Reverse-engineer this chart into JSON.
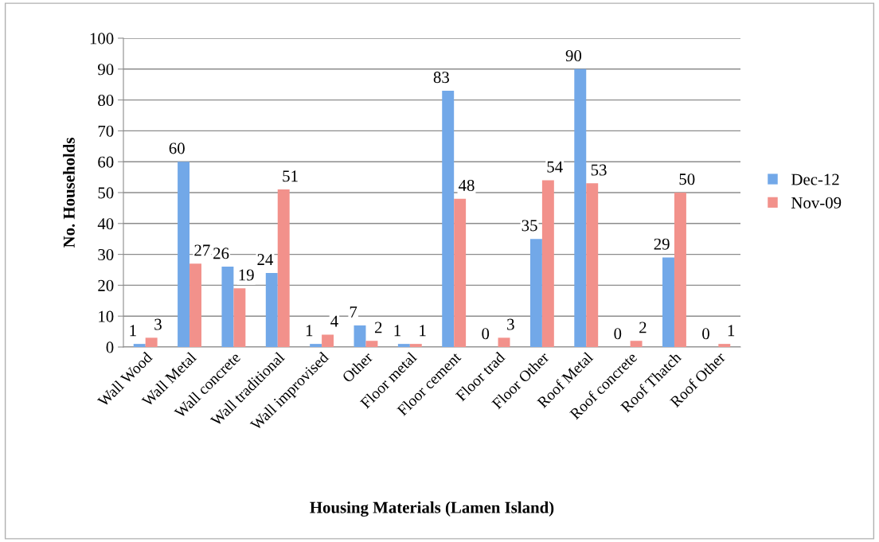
{
  "chart_data": {
    "type": "bar",
    "xlabel": "Housing Materials (Lamen Island)",
    "ylabel": "No. Households",
    "categories": [
      "Wall Wood",
      "Wall Metal",
      "Wall concrete",
      "Wall traditional",
      "Wall improvised",
      "Other",
      "Floor metal",
      "Floor cement",
      "Floor trad",
      "Floor Other",
      "Roof Metal",
      "Roof concrete",
      "Roof Thatch",
      "Roof Other"
    ],
    "series": [
      {
        "name": "Dec-12",
        "color": "#72a8e8",
        "values": [
          1,
          60,
          26,
          24,
          1,
          7,
          1,
          83,
          0,
          35,
          90,
          0,
          29,
          0
        ]
      },
      {
        "name": "Nov-09",
        "color": "#f2918b",
        "values": [
          3,
          27,
          19,
          51,
          4,
          2,
          1,
          48,
          3,
          54,
          53,
          2,
          50,
          1
        ]
      }
    ],
    "ylim": [
      0,
      100
    ],
    "yticks": [
      0,
      10,
      20,
      30,
      40,
      50,
      60,
      70,
      80,
      90,
      100
    ],
    "grid": "y",
    "legend": "right",
    "data_labels": true
  }
}
